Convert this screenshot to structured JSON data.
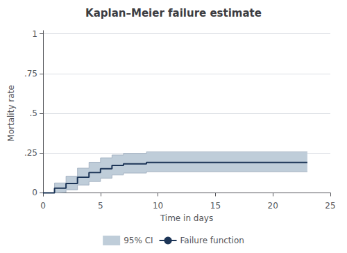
{
  "chart_data": {
    "type": "line",
    "title": "Kaplan–Meier failure estimate",
    "xlabel": "Time in days",
    "ylabel": "Mortality rate",
    "xlim": [
      0,
      25
    ],
    "ylim": [
      -0.02,
      1.02
    ],
    "xticks": [
      0,
      5,
      10,
      15,
      20,
      25
    ],
    "yticks": [
      0,
      {
        "value": 0.25,
        "label": ".25"
      },
      {
        "value": 0.5,
        "label": ".5"
      },
      {
        "value": 0.75,
        "label": ".75"
      },
      1
    ],
    "grid": "y",
    "legend": "bottom",
    "series": [
      {
        "name": "95% CI",
        "type": "area",
        "color": "#bfcdd9",
        "x": [
          0,
          1,
          1,
          2,
          2,
          3,
          3,
          4,
          4,
          5,
          5,
          6,
          6,
          7,
          7,
          9,
          9,
          23
        ],
        "upper": [
          0,
          0,
          0.062,
          0.062,
          0.105,
          0.105,
          0.155,
          0.155,
          0.192,
          0.192,
          0.22,
          0.22,
          0.238,
          0.238,
          0.248,
          0.248,
          0.258,
          0.258
        ],
        "lower": [
          0,
          0,
          0.003,
          0.003,
          0.019,
          0.019,
          0.049,
          0.049,
          0.071,
          0.071,
          0.092,
          0.092,
          0.112,
          0.112,
          0.124,
          0.124,
          0.133,
          0.133
        ]
      },
      {
        "name": "Failure function",
        "type": "line",
        "line_style": "step",
        "color": "#1c3557",
        "x": [
          0,
          1,
          1,
          2,
          2,
          3,
          3,
          4,
          4,
          5,
          5,
          6,
          6,
          7,
          7,
          9,
          9,
          23
        ],
        "values": [
          0,
          0,
          0.029,
          0.029,
          0.059,
          0.059,
          0.098,
          0.098,
          0.127,
          0.127,
          0.152,
          0.152,
          0.172,
          0.172,
          0.182,
          0.182,
          0.191,
          0.191
        ]
      }
    ]
  }
}
